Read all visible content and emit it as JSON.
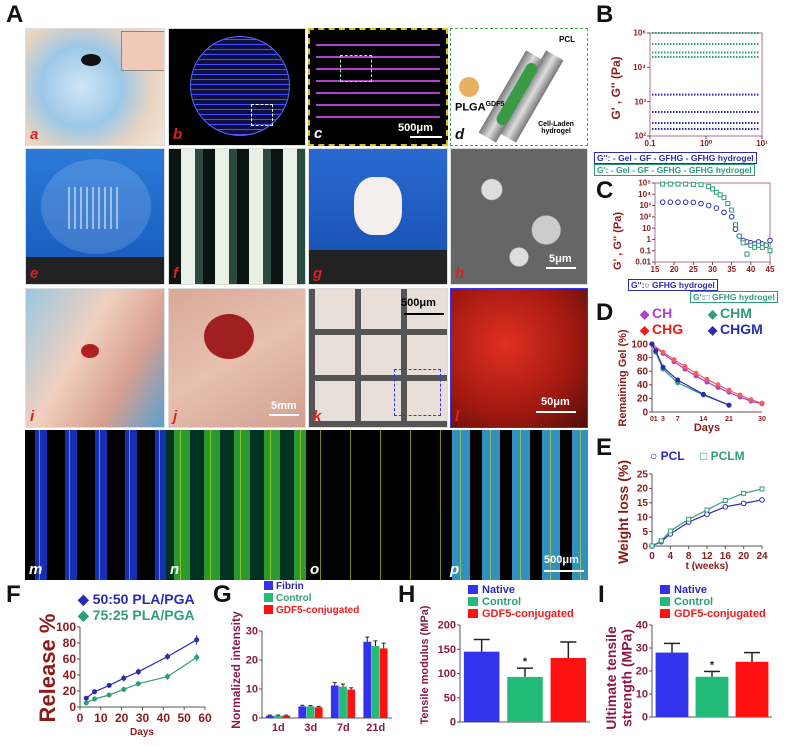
{
  "panel_letters": {
    "A": "A",
    "B": "B",
    "C": "C",
    "D": "D",
    "E": "E",
    "F": "F",
    "G": "G",
    "H": "H",
    "I": "I"
  },
  "images": [
    {
      "label": "a"
    },
    {
      "label": "b"
    },
    {
      "label": "c",
      "scale": "500μm"
    },
    {
      "label": "d",
      "pcl": "PCL",
      "plga": "PLGA",
      "plga_sup": "GDF5",
      "hydrogel": "Cell-Laden hydrogel"
    },
    {
      "label": "e"
    },
    {
      "label": "f"
    },
    {
      "label": "g"
    },
    {
      "label": "h",
      "scale": "5μm"
    },
    {
      "label": "i"
    },
    {
      "label": "j",
      "scale": "5mm"
    },
    {
      "label": "k",
      "scale": "500μm"
    },
    {
      "label": "l",
      "scale": "50μm"
    },
    {
      "label": "m"
    },
    {
      "label": "n"
    },
    {
      "label": "o"
    },
    {
      "label": "p",
      "scale": "500μm"
    }
  ],
  "colors": {
    "dark_red": "#8b1a1a",
    "blue": "#2b2bb0",
    "green": "#2e9e78",
    "red": "#ee1c1c",
    "purple": "#b040d0",
    "pink": "#f06060",
    "bar_blue": "#3333ee",
    "bar_green": "#22bb77",
    "bar_red": "#ff1111"
  },
  "chart_data": [
    {
      "id": "B",
      "type": "line",
      "xscale": "log",
      "yscale": "log",
      "xlim": [
        0.1,
        10
      ],
      "ylim": [
        100,
        100000
      ],
      "xticks": [
        "0.1",
        "10⁰",
        "10¹"
      ],
      "yticks": [
        "10²",
        "10³",
        "10⁴",
        "10⁶"
      ],
      "ylabel": "G' , G'' (Pa)",
      "legend": {
        "g2_prefix": "G'':",
        "g1_prefix": "G':",
        "entries": [
          "- Gel",
          "- GF",
          "- GFHG",
          "- GFHG hydrogel"
        ]
      },
      "series": [
        {
          "group": "G'",
          "values": [
            100000,
            48000,
            27000,
            20000
          ]
        },
        {
          "group": "G''",
          "values": [
            1600,
            500,
            240,
            160
          ]
        }
      ]
    },
    {
      "id": "C",
      "type": "scatter",
      "yscale": "log",
      "xlim": [
        15,
        45
      ],
      "ylim": [
        0.01,
        100000
      ],
      "xticks": [
        "15",
        "20",
        "25",
        "30",
        "35",
        "40",
        "45"
      ],
      "yticks": [
        "0.01",
        "0.1",
        "1",
        "10",
        "10²",
        "10³",
        "10⁴",
        "10⁵"
      ],
      "ylabel": "G' , G'' (Pa)",
      "legend": [
        "G'':○ GFHG hydrogel",
        "G':□ GFHG hydrogel"
      ],
      "series": [
        {
          "name": "G'' GFHG hydrogel",
          "x": [
            17,
            19,
            21,
            23,
            25,
            27,
            29,
            31,
            33,
            35,
            36,
            37,
            38,
            39,
            40,
            41,
            42,
            43,
            44,
            45
          ],
          "y": [
            2000,
            2000,
            2000,
            2000,
            1900,
            1500,
            1000,
            600,
            250,
            100,
            8,
            2,
            0.8,
            0.6,
            0.5,
            0.4,
            0.6,
            0.4,
            0.3,
            0.8
          ]
        },
        {
          "name": "G' GFHG hydrogel",
          "x": [
            17,
            19,
            21,
            23,
            25,
            27,
            29,
            30,
            31,
            32,
            33,
            34,
            35,
            36,
            37,
            38,
            39,
            40,
            41,
            42,
            43,
            44,
            45
          ],
          "y": [
            80000,
            80000,
            80000,
            80000,
            75000,
            70000,
            50000,
            30000,
            15000,
            9000,
            5000,
            1500,
            400,
            20,
            2,
            0.5,
            0.05,
            0.3,
            0.2,
            0.3,
            0.2,
            0.3,
            0.1
          ]
        }
      ]
    },
    {
      "id": "D",
      "type": "line",
      "xlim": [
        0,
        30
      ],
      "ylim": [
        0,
        100
      ],
      "xticks": [
        "0",
        "1",
        "3",
        "7",
        "14",
        "21",
        "30"
      ],
      "xtick_values": [
        0,
        1,
        3,
        7,
        14,
        21,
        30
      ],
      "yticks": [
        "0",
        "20",
        "40",
        "60",
        "80",
        "100"
      ],
      "xlabel": "Days",
      "ylabel": "Remaining Gel (%)",
      "series": [
        {
          "name": "CH",
          "x": [
            0,
            3,
            6,
            9,
            12,
            15,
            18,
            21,
            24,
            27,
            30
          ],
          "y": [
            100,
            86,
            74,
            63,
            53,
            44,
            36,
            29,
            22,
            16,
            12
          ]
        },
        {
          "name": "CHG",
          "x": [
            0,
            3,
            6,
            9,
            12,
            15,
            18,
            21,
            24,
            27,
            30
          ],
          "y": [
            100,
            88,
            77,
            67,
            57,
            48,
            40,
            32,
            25,
            18,
            13
          ]
        },
        {
          "name": "CHM",
          "x": [
            0,
            1,
            3,
            7,
            14,
            21
          ],
          "y": [
            100,
            88,
            63,
            43,
            25,
            10
          ]
        },
        {
          "name": "CHGM",
          "x": [
            0,
            1,
            3,
            7,
            14,
            21
          ],
          "y": [
            100,
            90,
            66,
            47,
            26,
            10
          ]
        }
      ]
    },
    {
      "id": "E",
      "type": "line",
      "xlim": [
        0,
        24
      ],
      "ylim": [
        0,
        25
      ],
      "xticks": [
        "0",
        "4",
        "8",
        "12",
        "16",
        "20",
        "24"
      ],
      "yticks": [
        "0",
        "5",
        "10",
        "15",
        "20",
        "25"
      ],
      "xlabel": "t (weeks)",
      "ylabel": "Weight loss (%)",
      "series": [
        {
          "name": "PCL",
          "x": [
            0,
            2,
            4,
            8,
            12,
            16,
            20,
            24
          ],
          "y": [
            0,
            1.5,
            4.2,
            8.3,
            11,
            13.6,
            14.8,
            16
          ]
        },
        {
          "name": "PCLM",
          "x": [
            0,
            2,
            4,
            8,
            12,
            16,
            20,
            24
          ],
          "y": [
            0,
            1.8,
            5.2,
            9.3,
            12.5,
            15.8,
            18.3,
            19.8
          ]
        }
      ]
    },
    {
      "id": "F",
      "type": "line",
      "xlim": [
        0,
        60
      ],
      "ylim": [
        0,
        100
      ],
      "xticks": [
        "0",
        "10",
        "20",
        "30",
        "40",
        "50",
        "60"
      ],
      "yticks": [
        "0",
        "20",
        "40",
        "60",
        "80",
        "100"
      ],
      "xlabel": "Days",
      "ylabel": "Release %",
      "series": [
        {
          "name": "50:50 PLA/PGA",
          "x": [
            3,
            7,
            14,
            21,
            28,
            42,
            56
          ],
          "y": [
            11,
            19,
            27,
            36,
            44,
            63,
            84
          ],
          "err": [
            2,
            2,
            3,
            4,
            4,
            4,
            6
          ]
        },
        {
          "name": "75:25 PLA/PGA",
          "x": [
            3,
            7,
            14,
            21,
            28,
            42,
            56
          ],
          "y": [
            5,
            10,
            15,
            22,
            29,
            38,
            62
          ],
          "err": [
            2,
            2,
            2,
            3,
            3,
            4,
            5
          ]
        }
      ]
    },
    {
      "id": "G",
      "type": "bar",
      "categories": [
        "1d",
        "3d",
        "7d",
        "21d"
      ],
      "ylim": [
        0,
        30
      ],
      "yticks": [
        "0",
        "10",
        "20",
        "30"
      ],
      "ylabel": "Normalized intensity",
      "series": [
        {
          "name": "Fibrin",
          "values": [
            0.8,
            4.0,
            11.2,
            26.3
          ],
          "err": [
            0.2,
            0.4,
            1.0,
            1.6
          ]
        },
        {
          "name": "Control",
          "values": [
            0.8,
            4.0,
            10.8,
            24.8
          ],
          "err": [
            0.2,
            0.3,
            0.9,
            1.8
          ]
        },
        {
          "name": "GDF5-conjugated",
          "values": [
            0.8,
            3.7,
            9.8,
            24.0
          ],
          "err": [
            0.2,
            0.3,
            0.6,
            1.8
          ]
        }
      ]
    },
    {
      "id": "H",
      "type": "bar",
      "categories": [
        "Native",
        "Control",
        "GDF5-conjugated"
      ],
      "ylim": [
        0,
        200
      ],
      "yticks": [
        "0",
        "50",
        "100",
        "150",
        "200"
      ],
      "ylabel": "Tensile modulus (MPa)",
      "values": [
        145,
        93,
        132
      ],
      "err": [
        25,
        18,
        33
      ],
      "annotations": [
        "",
        "*",
        ""
      ]
    },
    {
      "id": "I",
      "type": "bar",
      "categories": [
        "Native",
        "Control",
        "GDF5-conjugated"
      ],
      "ylim": [
        0,
        40
      ],
      "yticks": [
        "0",
        "10",
        "20",
        "30",
        "40"
      ],
      "ylabel": "Ultimate tensile strength (MPa)",
      "values": [
        28,
        17.5,
        24
      ],
      "err": [
        4,
        2.3,
        4
      ],
      "annotations": [
        "",
        "*",
        ""
      ]
    }
  ]
}
